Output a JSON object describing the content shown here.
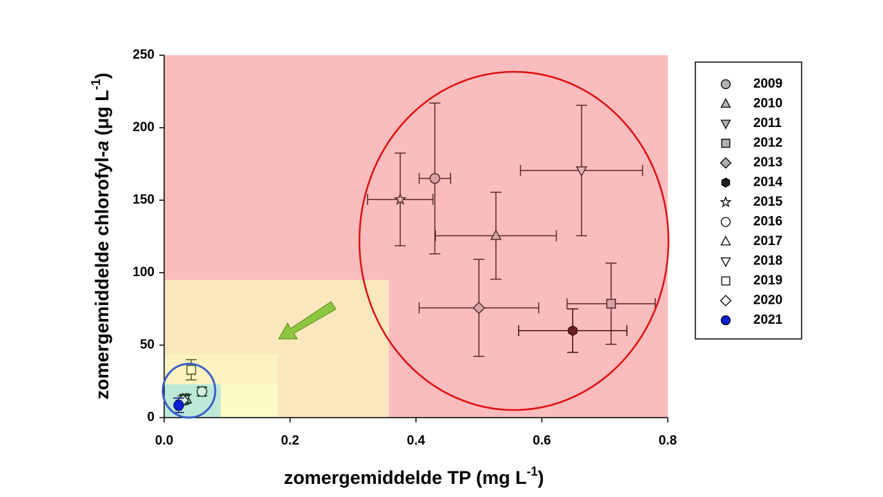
{
  "chart_data": {
    "type": "scatter",
    "x_label_parts": [
      "zomergemiddelde TP (mg L",
      "-1",
      ")"
    ],
    "y_label_parts": [
      "zomergemiddelde chlorofyl-",
      "a",
      " (μg L",
      "-1",
      ")"
    ],
    "xlim": [
      0,
      0.8
    ],
    "ylim": [
      0,
      250
    ],
    "xticks": [
      {
        "value": 0,
        "label": "0.0"
      },
      0.2,
      0.4,
      0.6,
      0.8
    ],
    "yticks": [
      0,
      50,
      100,
      150,
      200,
      250
    ],
    "zones": [
      {
        "x": [
          0,
          0.8
        ],
        "y": [
          0,
          250
        ],
        "color": "#fbbcbe"
      },
      {
        "x": [
          0,
          0.357
        ],
        "y": [
          0,
          95
        ],
        "color": "#fbe7bd"
      },
      {
        "x": [
          0,
          0.18
        ],
        "y": [
          0,
          44
        ],
        "color": "#fcf3c0"
      },
      {
        "x": [
          0,
          0.18
        ],
        "y": [
          0,
          23
        ],
        "color": "#fdfac6"
      },
      {
        "x": [
          0,
          0.09
        ],
        "y": [
          0,
          23
        ],
        "color": "#bdead8"
      }
    ],
    "series": [
      {
        "name": "2009",
        "marker": "circle",
        "color": "#d9a3a5",
        "edge": "#5a2a2a",
        "x": [
          0.43
        ],
        "values": [
          165
        ],
        "xerr": [
          0.025
        ],
        "yerr": [
          52
        ]
      },
      {
        "name": "2010",
        "marker": "triangle-up",
        "color": "#d9a3a5",
        "edge": "#5a2a2a",
        "x": [
          0.527
        ],
        "values": [
          125.5
        ],
        "xerr": [
          0.096
        ],
        "yerr": [
          30
        ]
      },
      {
        "name": "2011",
        "marker": "triangle-down",
        "color": "#e8b6b8",
        "edge": "#5a2a2a",
        "x": [
          0.663
        ],
        "values": [
          170.5
        ],
        "xerr": [
          0.097
        ],
        "yerr": [
          45
        ]
      },
      {
        "name": "2012",
        "marker": "square",
        "color": "#d9a3a5",
        "edge": "#5a2a2a",
        "x": [
          0.71
        ],
        "values": [
          78.6
        ],
        "xerr": [
          0.07
        ],
        "yerr": [
          28
        ]
      },
      {
        "name": "2013",
        "marker": "diamond",
        "color": "#d9a3a5",
        "edge": "#5a2a2a",
        "x": [
          0.5
        ],
        "values": [
          75.7
        ],
        "xerr": [
          0.095
        ],
        "yerr": [
          33.5
        ]
      },
      {
        "name": "2014",
        "marker": "hexagon",
        "color": "#6b1f24",
        "edge": "#3a1010",
        "x": [
          0.649
        ],
        "values": [
          60
        ],
        "xerr": [
          0.086
        ],
        "yerr": [
          15
        ]
      },
      {
        "name": "2015",
        "marker": "star",
        "color": "#f5c0c2",
        "edge": "#5a2a2a",
        "x": [
          0.375
        ],
        "values": [
          150.5
        ],
        "xerr": [
          0.052
        ],
        "yerr": [
          32
        ]
      },
      {
        "name": "2016",
        "marker": "circle",
        "color": "#d6f0de",
        "edge": "#1e3b2e",
        "x": [
          0.06
        ],
        "values": [
          18
        ],
        "xerr": [
          0.005
        ],
        "yerr": [
          3
        ]
      },
      {
        "name": "2017",
        "marker": "triangle-up",
        "color": "#d6f0de",
        "edge": "#1e3b2e",
        "x": [
          0.035
        ],
        "values": [
          13
        ],
        "xerr": [
          0.004
        ],
        "yerr": [
          3
        ]
      },
      {
        "name": "2018",
        "marker": "triangle-down",
        "color": "#d6f0de",
        "edge": "#1e3b2e",
        "x": [
          0.033
        ],
        "values": [
          13
        ],
        "xerr": [
          0.004
        ],
        "yerr": [
          3
        ]
      },
      {
        "name": "2019",
        "marker": "square",
        "color": "#fdf8c4",
        "edge": "#5a5a20",
        "x": [
          0.043
        ],
        "values": [
          33
        ],
        "xerr": [
          0.005
        ],
        "yerr": [
          7
        ]
      },
      {
        "name": "2020",
        "marker": "diamond",
        "color": "#d6f0de",
        "edge": "#1e3b2e",
        "x": [
          0.03
        ],
        "values": [
          12
        ],
        "xerr": [
          0.004
        ],
        "yerr": [
          3
        ]
      },
      {
        "name": "2021",
        "marker": "circle",
        "color": "#0a1fd6",
        "edge": "#0a1080",
        "x": [
          0.023
        ],
        "values": [
          8.5
        ],
        "xerr": [
          0.004
        ],
        "yerr": [
          5
        ]
      }
    ]
  }
}
